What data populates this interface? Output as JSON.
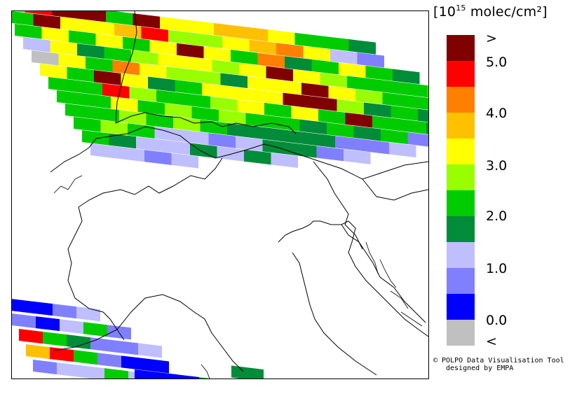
{
  "map": {
    "unit_prefix": "[10",
    "unit_exp": "15",
    "unit_suffix": " molec/cm²]",
    "colorscale": [
      {
        "color": "#800000"
      },
      {
        "color": "#ff0000"
      },
      {
        "color": "#ff8000"
      },
      {
        "color": "#ffc000"
      },
      {
        "color": "#ffff00"
      },
      {
        "color": "#99ff00"
      },
      {
        "color": "#00cc00"
      },
      {
        "color": "#008c38"
      },
      {
        "color": "#bfbfff"
      },
      {
        "color": "#8080ff"
      },
      {
        "color": "#0000ff"
      },
      {
        "color": "#c0c0c0"
      }
    ],
    "ticks": [
      ">",
      "5.0",
      "4.0",
      "3.0",
      "2.0",
      "1.0",
      "0.0",
      "<"
    ],
    "credit_line1": "© POLPO Data Visualisation Tool",
    "credit_line2": "designed by EMPA"
  }
}
